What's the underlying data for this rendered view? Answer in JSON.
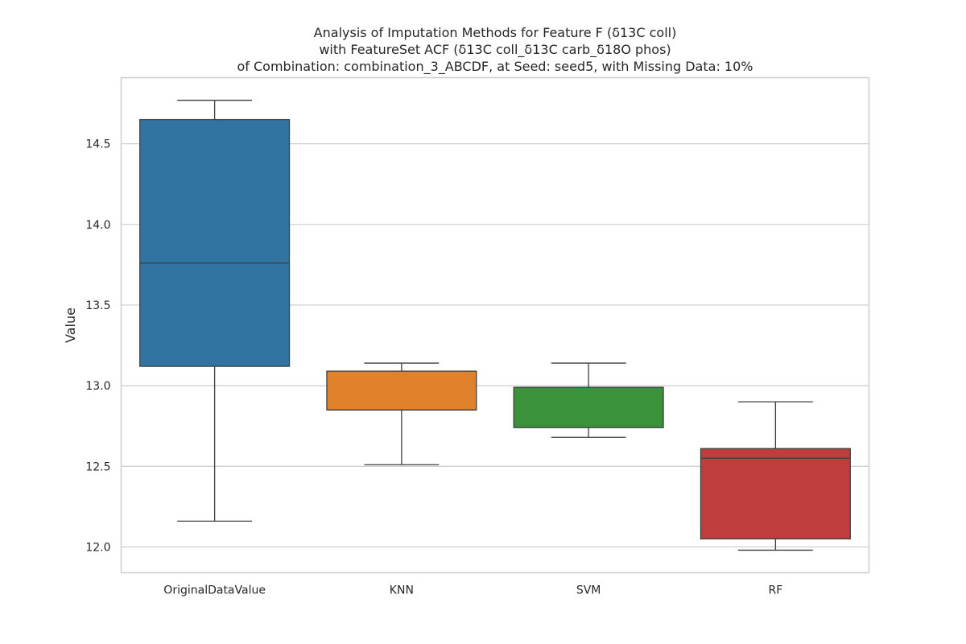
{
  "chart_data": {
    "type": "boxplot",
    "title": [
      "Analysis of Imputation Methods for Feature F (δ13C coll)",
      "with FeatureSet ACF (δ13C coll_δ13C carb_δ18O phos)",
      "of Combination: combination_3_ABCDF, at Seed: seed5, with Missing Data: 10%"
    ],
    "xlabel": "",
    "ylabel": "Value",
    "ylim": [
      11.84,
      14.91
    ],
    "yticks": [
      "12.0",
      "12.5",
      "13.0",
      "13.5",
      "14.0",
      "14.5"
    ],
    "grid": "horizontal",
    "categories": [
      "OriginalDataValue",
      "KNN",
      "SVM",
      "RF"
    ],
    "boxes": [
      {
        "name": "OriginalDataValue",
        "whisker_low": 12.16,
        "q1": 13.12,
        "median": 13.76,
        "q3": 14.65,
        "whisker_high": 14.77,
        "color": "#3274a1"
      },
      {
        "name": "KNN",
        "whisker_low": 12.51,
        "q1": 12.85,
        "median": 12.85,
        "q3": 13.09,
        "whisker_high": 13.14,
        "color": "#e1812c"
      },
      {
        "name": "SVM",
        "whisker_low": 12.68,
        "q1": 12.74,
        "median": 12.99,
        "q3": 12.99,
        "whisker_high": 13.14,
        "color": "#3a923a"
      },
      {
        "name": "RF",
        "whisker_low": 11.98,
        "q1": 12.05,
        "median": 12.55,
        "q3": 12.61,
        "whisker_high": 12.9,
        "color": "#c03d3e"
      }
    ]
  }
}
